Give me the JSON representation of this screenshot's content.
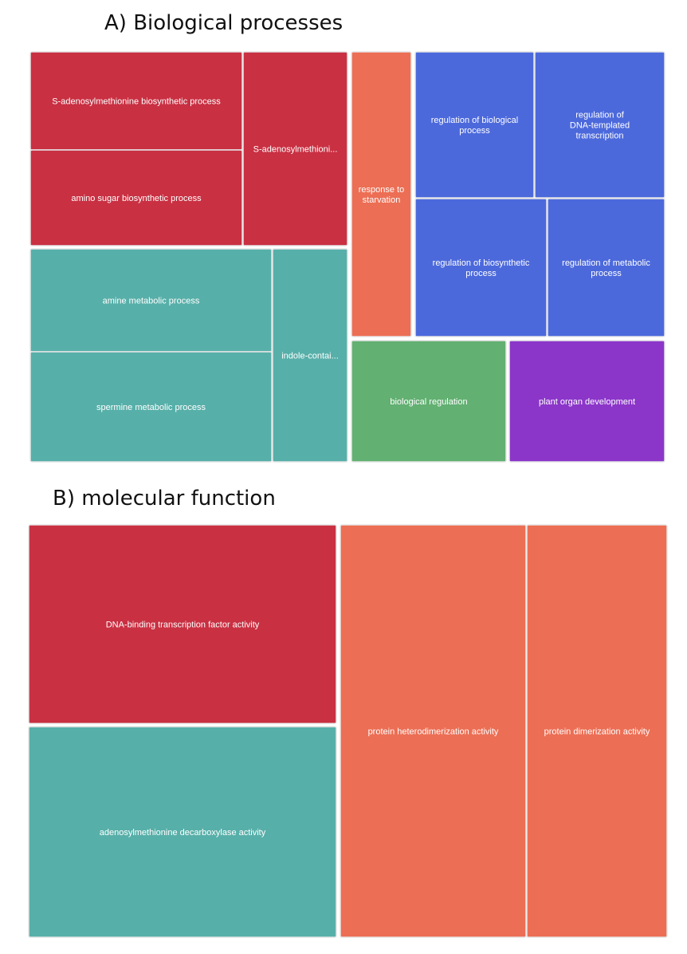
{
  "panels": {
    "a": {
      "title": "A) Biological processes"
    },
    "b": {
      "title": "B) molecular function"
    }
  },
  "colors": {
    "red": "#c93042",
    "teal": "#57afa9",
    "orange": "#ec6e54",
    "blue": "#4c69dc",
    "green": "#62b072",
    "purple": "#8b36c9",
    "border": "#e6e6e6"
  },
  "chart_data": [
    {
      "type": "treemap",
      "title": "A) Biological processes",
      "groups": [
        {
          "color": "red",
          "items": [
            {
              "label": [
                "S-adenosylmethionine biosynthetic process"
              ]
            },
            {
              "label": [
                "amino sugar biosynthetic process"
              ]
            },
            {
              "label": [
                "S-adenosylmethioni..."
              ]
            }
          ]
        },
        {
          "color": "teal",
          "items": [
            {
              "label": [
                "amine metabolic process"
              ]
            },
            {
              "label": [
                "spermine metabolic process"
              ]
            },
            {
              "label": [
                "indole-contai..."
              ]
            }
          ]
        },
        {
          "color": "orange",
          "items": [
            {
              "label": [
                "response to",
                "starvation"
              ]
            }
          ]
        },
        {
          "color": "blue",
          "items": [
            {
              "label": [
                "regulation of biological",
                "process"
              ]
            },
            {
              "label": [
                "regulation of",
                "DNA-templated",
                "transcription"
              ]
            },
            {
              "label": [
                "regulation of biosynthetic",
                "process"
              ]
            },
            {
              "label": [
                "regulation of metabolic",
                "process"
              ]
            }
          ]
        },
        {
          "color": "green",
          "items": [
            {
              "label": [
                "biological regulation"
              ]
            }
          ]
        },
        {
          "color": "purple",
          "items": [
            {
              "label": [
                "plant organ development"
              ]
            }
          ]
        }
      ]
    },
    {
      "type": "treemap",
      "title": "B) molecular function",
      "groups": [
        {
          "color": "red",
          "items": [
            {
              "label": [
                "DNA-binding transcription factor activity"
              ]
            }
          ]
        },
        {
          "color": "teal",
          "items": [
            {
              "label": [
                "adenosylmethionine decarboxylase activity"
              ]
            }
          ]
        },
        {
          "color": "orange",
          "items": [
            {
              "label": [
                "protein heterodimerization activity"
              ]
            },
            {
              "label": [
                "protein dimerization activity"
              ]
            }
          ]
        }
      ]
    }
  ]
}
